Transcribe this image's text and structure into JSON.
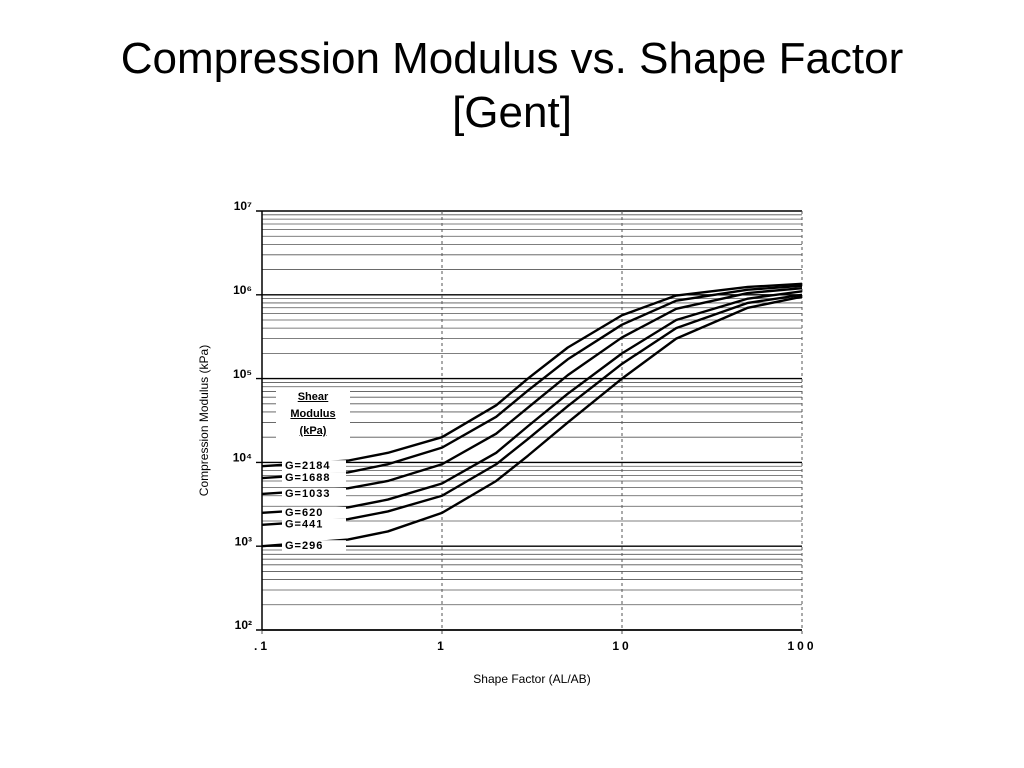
{
  "title": "Compression Modulus vs. Shape Factor [Gent]",
  "chart_data": {
    "type": "line",
    "x_label": "Shape Factor (AL/AB)",
    "y_label": "Compression Modulus (kPa)",
    "legend_title": "Shear Modulus (kPa)",
    "x": [
      0.1,
      0.3,
      0.5,
      1,
      2,
      3,
      5,
      10,
      20,
      50,
      100
    ],
    "series": [
      {
        "name": "G=2184",
        "color": "#000000",
        "values": [
          9000,
          10500,
          13000,
          20000,
          48000,
          100000,
          235000,
          570000,
          980000,
          1240000,
          1350000
        ]
      },
      {
        "name": "G=1688",
        "color": "#000000",
        "values": [
          6500,
          7600,
          9500,
          15000,
          35000,
          72000,
          170000,
          440000,
          850000,
          1150000,
          1280000
        ]
      },
      {
        "name": "G=1033",
        "color": "#000000",
        "values": [
          4200,
          4900,
          6000,
          9500,
          22000,
          45000,
          110000,
          310000,
          680000,
          1050000,
          1200000
        ]
      },
      {
        "name": "G=620",
        "color": "#000000",
        "values": [
          2500,
          2900,
          3600,
          5600,
          13000,
          27000,
          66000,
          200000,
          500000,
          900000,
          1100000
        ]
      },
      {
        "name": "G=441",
        "color": "#000000",
        "values": [
          1800,
          2100,
          2600,
          4000,
          9500,
          19000,
          47000,
          150000,
          400000,
          800000,
          1000000
        ]
      },
      {
        "name": "G=296",
        "color": "#000000",
        "values": [
          1000,
          1200,
          1500,
          2500,
          6000,
          12000,
          30000,
          100000,
          300000,
          700000,
          950000
        ]
      }
    ],
    "xlog": true,
    "ylog": true,
    "xlim": [
      0.1,
      100
    ],
    "ylim": [
      100,
      10000000
    ],
    "xticks": [
      {
        "value": 0.1,
        "label": ".1"
      },
      1,
      10,
      100
    ],
    "yticks": [
      {
        "value": 100,
        "label": "10²"
      },
      {
        "value": 1000,
        "label": "10³"
      },
      {
        "value": 10000,
        "label": "10⁴"
      },
      {
        "value": 100000,
        "label": "10⁵"
      },
      {
        "value": 1000000,
        "label": "10⁶"
      },
      {
        "value": 10000000,
        "label": "10⁷"
      }
    ],
    "grid": true
  }
}
